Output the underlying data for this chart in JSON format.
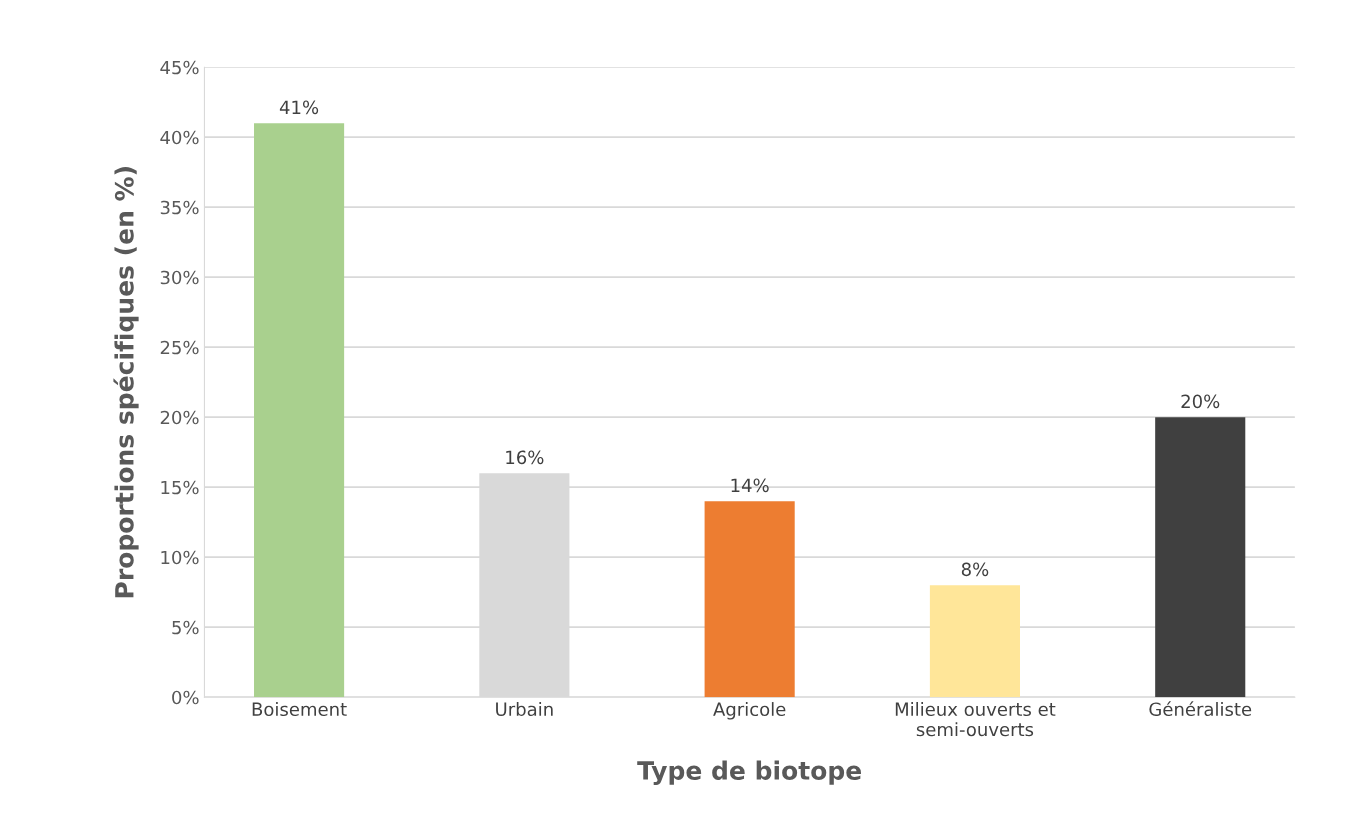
{
  "chart_data": {
    "type": "bar",
    "categories": [
      "Boisement",
      "Urbain",
      "Agricole",
      "Milieux ouverts et\nsemi-ouverts",
      "Généraliste"
    ],
    "values": [
      41,
      16,
      14,
      8,
      20
    ],
    "colors": [
      "#a9d08e",
      "#d9d9d9",
      "#ed7d31",
      "#ffe699",
      "#404040"
    ],
    "value_labels": [
      "41%",
      "16%",
      "14%",
      "8%",
      "20%"
    ],
    "xlabel": "Type de biotope",
    "ylabel": "Proportions spécifiques (en %)",
    "ylim": [
      0,
      45
    ],
    "yticks": [
      {
        "value": 0,
        "label": "0%"
      },
      {
        "value": 5,
        "label": "5%"
      },
      {
        "value": 10,
        "label": "10%"
      },
      {
        "value": 15,
        "label": "15%"
      },
      {
        "value": 20,
        "label": "20%"
      },
      {
        "value": 25,
        "label": "25%"
      },
      {
        "value": 30,
        "label": "30%"
      },
      {
        "value": 35,
        "label": "35%"
      },
      {
        "value": 40,
        "label": "40%"
      },
      {
        "value": 45,
        "label": "45%"
      }
    ],
    "grid": "y"
  }
}
